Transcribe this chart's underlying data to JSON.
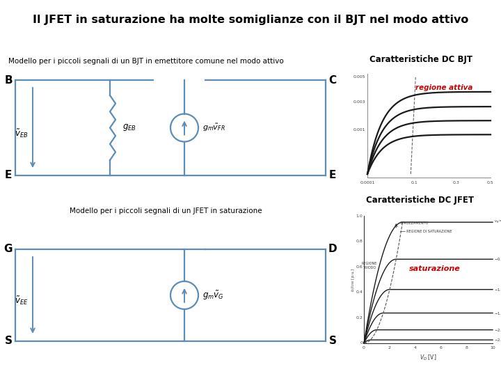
{
  "title": "Il JFET in saturazione ha molte somiglianze con il BJT nel modo attivo",
  "bjt_label": "Modello per i piccoli segnali di un BJT in emettitore comune nel modo attivo",
  "jfet_label": "Modello per i piccoli segnali di un JFET in saturazione",
  "bjt_char_title": "Caratteristiche DC BJT",
  "jfet_char_title": "Caratteristiche DC JFET",
  "regione_attiva": "regione attiva",
  "saturazione": "saturazione",
  "background": "#ffffff",
  "line_color": "#5B8DB8",
  "text_color": "#000000",
  "red_text": "#CC0000",
  "label_B": "B",
  "label_C": "C",
  "label_E_left": "E",
  "label_E_right": "E",
  "label_G": "G",
  "label_D": "D",
  "label_S_left": "S",
  "label_S_right": "S",
  "vEB": "$\\tilde{v}_{EB}$",
  "gBE": "$g_{EB}$",
  "gmvBE": "$g_m\\tilde{v}_{FR}$",
  "vEE": "$\\tilde{v}_{EE}$",
  "gmvG": "$g_m\\tilde{v}_G$"
}
